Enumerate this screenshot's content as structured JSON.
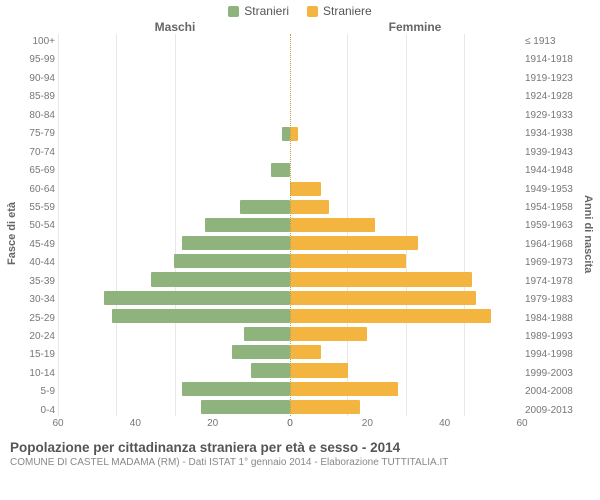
{
  "legend": {
    "male": {
      "label": "Stranieri",
      "color": "#8fb37d"
    },
    "female": {
      "label": "Straniere",
      "color": "#f3b53f"
    }
  },
  "panel_titles": {
    "left": "Maschi",
    "right": "Femmine"
  },
  "y_title_left": "Fasce di età",
  "y_title_right": "Anni di nascita",
  "age_labels": [
    "100+",
    "95-99",
    "90-94",
    "85-89",
    "80-84",
    "75-79",
    "70-74",
    "65-69",
    "60-64",
    "55-59",
    "50-54",
    "45-49",
    "40-44",
    "35-39",
    "30-34",
    "25-29",
    "20-24",
    "15-19",
    "10-14",
    "5-9",
    "0-4"
  ],
  "birth_labels": [
    "≤ 1913",
    "1914-1918",
    "1919-1923",
    "1924-1928",
    "1929-1933",
    "1934-1938",
    "1939-1943",
    "1944-1948",
    "1949-1953",
    "1954-1958",
    "1959-1963",
    "1964-1968",
    "1969-1973",
    "1974-1978",
    "1979-1983",
    "1984-1988",
    "1989-1993",
    "1994-1998",
    "1999-2003",
    "2004-2008",
    "2009-2013"
  ],
  "male_values": [
    0,
    0,
    0,
    0,
    0,
    2,
    0,
    5,
    0,
    13,
    22,
    28,
    30,
    36,
    48,
    46,
    12,
    15,
    10,
    28,
    23
  ],
  "female_values": [
    0,
    0,
    0,
    0,
    0,
    2,
    0,
    0,
    8,
    10,
    22,
    33,
    30,
    47,
    48,
    52,
    20,
    8,
    15,
    28,
    18
  ],
  "chart": {
    "type": "population-pyramid",
    "xmax": 60,
    "xtick_step": 20,
    "xticks": [
      0,
      20,
      40,
      60
    ],
    "background_color": "#ffffff",
    "grid_color": "#e8e8e8",
    "center_axis_color": "#b7a04a",
    "label_fontsize": 10,
    "label_color": "#777777"
  },
  "footer": {
    "title": "Popolazione per cittadinanza straniera per età e sesso - 2014",
    "subtitle": "COMUNE DI CASTEL MADAMA (RM) - Dati ISTAT 1° gennaio 2014 - Elaborazione TUTTITALIA.IT"
  }
}
